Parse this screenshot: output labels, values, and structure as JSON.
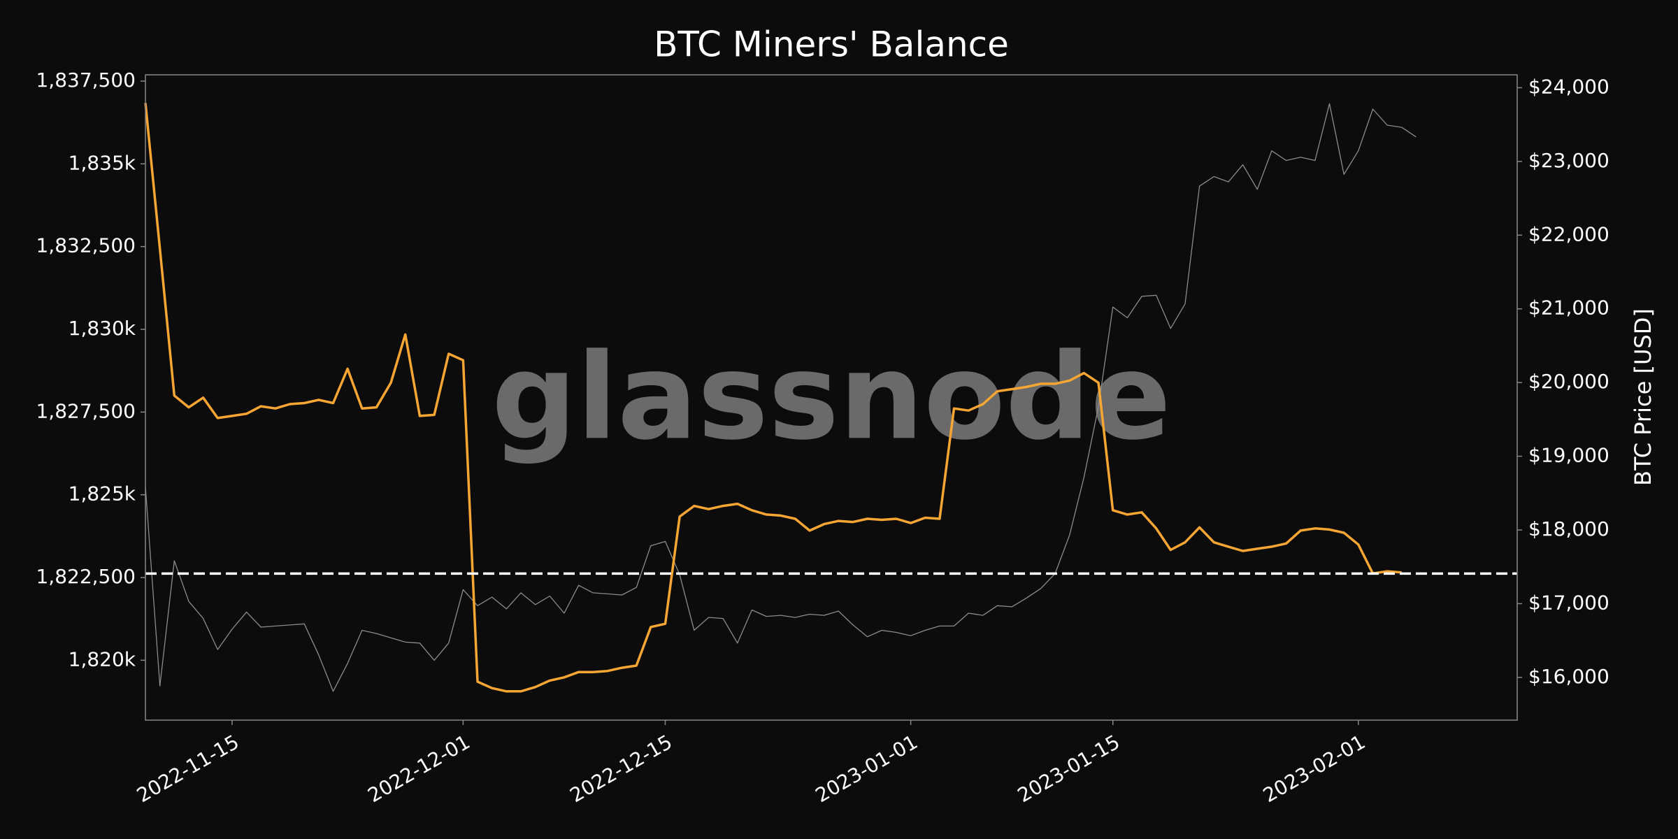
{
  "chart_data": {
    "type": "line",
    "title": "BTC Miners' Balance",
    "y2_label": "BTC Price [USD]",
    "watermark": "glassnode",
    "x": [
      "2022-11-09",
      "2022-11-10",
      "2022-11-11",
      "2022-11-12",
      "2022-11-13",
      "2022-11-14",
      "2022-11-15",
      "2022-11-16",
      "2022-11-17",
      "2022-11-18",
      "2022-11-19",
      "2022-11-20",
      "2022-11-21",
      "2022-11-22",
      "2022-11-23",
      "2022-11-24",
      "2022-11-25",
      "2022-11-26",
      "2022-11-27",
      "2022-11-28",
      "2022-11-29",
      "2022-11-30",
      "2022-12-01",
      "2022-12-02",
      "2022-12-03",
      "2022-12-04",
      "2022-12-05",
      "2022-12-06",
      "2022-12-07",
      "2022-12-08",
      "2022-12-09",
      "2022-12-10",
      "2022-12-11",
      "2022-12-12",
      "2022-12-13",
      "2022-12-14",
      "2022-12-15",
      "2022-12-16",
      "2022-12-17",
      "2022-12-18",
      "2022-12-19",
      "2022-12-20",
      "2022-12-21",
      "2022-12-22",
      "2022-12-23",
      "2022-12-24",
      "2022-12-25",
      "2022-12-26",
      "2022-12-27",
      "2022-12-28",
      "2022-12-29",
      "2022-12-30",
      "2022-12-31",
      "2023-01-01",
      "2023-01-02",
      "2023-01-03",
      "2023-01-04",
      "2023-01-05",
      "2023-01-06",
      "2023-01-07",
      "2023-01-08",
      "2023-01-09",
      "2023-01-10",
      "2023-01-11",
      "2023-01-12",
      "2023-01-13",
      "2023-01-14",
      "2023-01-15",
      "2023-01-16",
      "2023-01-17",
      "2023-01-18",
      "2023-01-19",
      "2023-01-20",
      "2023-01-21",
      "2023-01-22",
      "2023-01-23",
      "2023-01-24",
      "2023-01-25",
      "2023-01-26",
      "2023-01-27",
      "2023-01-28",
      "2023-01-29",
      "2023-01-30",
      "2023-01-31",
      "2023-02-01",
      "2023-02-02",
      "2023-02-03",
      "2023-02-04",
      "2023-02-05"
    ],
    "series": [
      {
        "name": "BTC Price",
        "color": "#8c8c8c",
        "axis": "y2",
        "values": [
          18585,
          15884,
          17583,
          17031,
          16799,
          16378,
          16653,
          16886,
          16682,
          16697,
          16711,
          16726,
          16305,
          15811,
          16189,
          16639,
          16595,
          16537,
          16479,
          16465,
          16232,
          16465,
          17191,
          16973,
          17089,
          16929,
          17147,
          16987,
          17104,
          16871,
          17249,
          17147,
          17133,
          17118,
          17220,
          17786,
          17844,
          17394,
          16639,
          16813,
          16799,
          16465,
          16915,
          16828,
          16842,
          16813,
          16857,
          16842,
          16900,
          16711,
          16552,
          16639,
          16610,
          16566,
          16639,
          16697,
          16697,
          16871,
          16842,
          16973,
          16958,
          17074,
          17205,
          17408,
          17931,
          18715,
          19674,
          21024,
          20879,
          21169,
          21184,
          20734,
          21068,
          22665,
          22795,
          22723,
          22955,
          22621,
          23144,
          23013,
          23057,
          23013,
          23783,
          22824,
          23144,
          23710,
          23492,
          23463,
          23333
        ]
      },
      {
        "name": "Miners' Balance",
        "color": "#f7a533",
        "values": [
          1836838,
          1832434,
          1827998,
          1827642,
          1827933,
          1827318,
          1827383,
          1827447,
          1827674,
          1827609,
          1827739,
          1827771,
          1827868,
          1827771,
          1828807,
          1827609,
          1827642,
          1828386,
          1829844,
          1827383,
          1827415,
          1829261,
          1829066,
          1819352,
          1819158,
          1819061,
          1819061,
          1819190,
          1819385,
          1819482,
          1819644,
          1819644,
          1819676,
          1819773,
          1819838,
          1821004,
          1821101,
          1824339,
          1824663,
          1824566,
          1824663,
          1824727,
          1824533,
          1824404,
          1824371,
          1824274,
          1823918,
          1824113,
          1824209,
          1824177,
          1824274,
          1824242,
          1824274,
          1824145,
          1824307,
          1824274,
          1827609,
          1827545,
          1827739,
          1828127,
          1828192,
          1828257,
          1828354,
          1828354,
          1828451,
          1828678,
          1828386,
          1824533,
          1824404,
          1824468,
          1823983,
          1823335,
          1823562,
          1824015,
          1823562,
          1823432,
          1823303,
          1823368,
          1823432,
          1823529,
          1823918,
          1823983,
          1823950,
          1823853,
          1823497,
          1822623,
          1822688,
          1822655,
          null
        ]
      }
    ],
    "reference_line": {
      "value": 1822620,
      "color": "#ffffff"
    },
    "xlim": [
      "2022-11-09",
      "2023-02-12"
    ],
    "xticks": [
      "2022-11-15",
      "2022-12-01",
      "2022-12-15",
      "2023-01-01",
      "2023-01-15",
      "2023-02-01"
    ],
    "ylim": [
      1818190,
      1837690
    ],
    "yticks": [
      {
        "value": 1820000,
        "label": "1,820k"
      },
      {
        "value": 1822500,
        "label": "1,822,500"
      },
      {
        "value": 1825000,
        "label": "1,825k"
      },
      {
        "value": 1827500,
        "label": "1,827,500"
      },
      {
        "value": 1830000,
        "label": "1,830k"
      },
      {
        "value": 1832500,
        "label": "1,832,500"
      },
      {
        "value": 1835000,
        "label": "1,835k"
      },
      {
        "value": 1837500,
        "label": "1,837,500"
      }
    ],
    "y2lim": [
      15420,
      24175
    ],
    "y2ticks": [
      {
        "value": 16000,
        "label": "$16,000"
      },
      {
        "value": 17000,
        "label": "$17,000"
      },
      {
        "value": 18000,
        "label": "$18,000"
      },
      {
        "value": 19000,
        "label": "$19,000"
      },
      {
        "value": 20000,
        "label": "$20,000"
      },
      {
        "value": 21000,
        "label": "$21,000"
      },
      {
        "value": 22000,
        "label": "$22,000"
      },
      {
        "value": 23000,
        "label": "$23,000"
      },
      {
        "value": 24000,
        "label": "$24,000"
      }
    ]
  }
}
